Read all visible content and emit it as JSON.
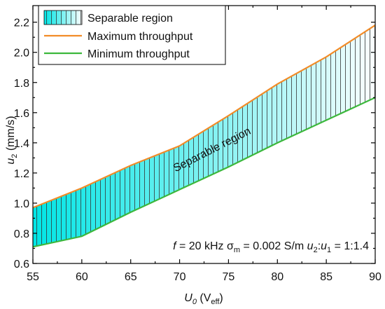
{
  "chart_data": {
    "type": "band",
    "x": [
      55,
      60,
      65,
      70,
      75,
      80,
      85,
      90
    ],
    "series": [
      {
        "name": "Maximum throughput",
        "color": "#f28c28",
        "values": [
          0.97,
          1.1,
          1.25,
          1.38,
          1.58,
          1.79,
          1.97,
          2.18
        ]
      },
      {
        "name": "Minimum throughput",
        "color": "#3cb83c",
        "values": [
          0.71,
          0.78,
          0.94,
          1.09,
          1.24,
          1.4,
          1.55,
          1.7
        ]
      }
    ],
    "region": {
      "name": "Separable region",
      "color": "#00e5e5",
      "label": "Separable region"
    },
    "xlim": [
      55,
      90
    ],
    "xticks": [
      55,
      60,
      65,
      70,
      75,
      80,
      85,
      90
    ],
    "ylim": [
      0.6,
      2.31
    ],
    "yticks": [
      0.6,
      0.8,
      {
        "value": 1,
        "label": "1.0"
      },
      1.2,
      1.4,
      1.6,
      1.8,
      {
        "value": 2,
        "label": "2.0"
      },
      2.2
    ],
    "x_label": [
      "U",
      "0",
      " (V",
      "eff",
      ")"
    ],
    "y_label": [
      "u",
      "2",
      " (mm/s)"
    ],
    "annotation": [
      "f",
      " = 20 kHz  σ",
      "m",
      " = 0.002 S/m  ",
      "u",
      "2",
      ":",
      "u",
      "1",
      " = 1:1.4"
    ],
    "legend": "upper left"
  }
}
